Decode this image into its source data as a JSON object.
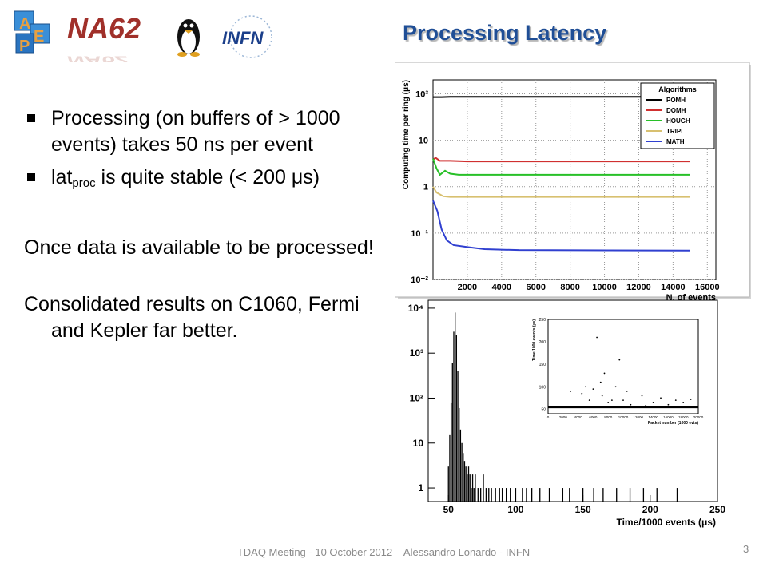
{
  "slide": {
    "title": "Processing Latency",
    "logo_text": "NA62",
    "logo_infn": "INFN",
    "bullets": [
      {
        "main": "Processing (on buffers of > 1000 events) takes 50 ns per event"
      },
      {
        "main_a": "lat",
        "sub": "proc",
        "main_b": " is quite stable (< 200 μs)"
      }
    ],
    "para1": "Once data is available to be processed!",
    "para2": "Consolidated results on C1060, Fermi and Kepler far better.",
    "footer": "TDAQ Meeting - 10 October 2012 – Alessandro Lonardo - INFN",
    "page_number": "3"
  },
  "colors": {
    "title": "#1f4e96",
    "POMH": "#000000",
    "DOMH": "#d03030",
    "HOUGH": "#28c028",
    "TRIPL": "#d8c070",
    "MATH": "#3040d0"
  },
  "chart_data": [
    {
      "type": "line",
      "xlabel": "N. of events",
      "ylabel": "Computing time per ring (μs)",
      "xlim": [
        0,
        16500
      ],
      "ylim": [
        0.01,
        200
      ],
      "yscale": "log",
      "xticks": [
        2000,
        4000,
        6000,
        8000,
        10000,
        12000,
        14000,
        16000
      ],
      "xtick_labels": [
        "2000",
        "4000",
        "6000",
        "8000",
        "10000",
        "12000",
        "14000",
        "16000"
      ],
      "yticks": [
        0.01,
        0.1,
        1,
        10,
        100
      ],
      "ytick_labels": [
        "10⁻²",
        "10⁻¹",
        "1",
        "10",
        "10²"
      ],
      "grid": true,
      "legend_title": "Algorithms",
      "legend_position": "top-right",
      "series": [
        {
          "name": "POMH",
          "x": [
            0,
            500,
            1000,
            2000,
            15000
          ],
          "y": [
            85,
            85,
            86,
            86,
            86
          ]
        },
        {
          "name": "DOMH",
          "x": [
            0,
            150,
            400,
            1000,
            2000,
            15000
          ],
          "y": [
            3.8,
            4.2,
            3.6,
            3.6,
            3.5,
            3.5
          ]
        },
        {
          "name": "HOUGH",
          "x": [
            0,
            200,
            400,
            700,
            1000,
            1500,
            2000,
            15000
          ],
          "y": [
            4.0,
            2.5,
            1.8,
            2.2,
            1.9,
            1.8,
            1.8,
            1.8
          ]
        },
        {
          "name": "TRIPL",
          "x": [
            0,
            200,
            600,
            1000,
            2000,
            15000
          ],
          "y": [
            1.0,
            0.75,
            0.62,
            0.6,
            0.6,
            0.6
          ]
        },
        {
          "name": "MATH",
          "x": [
            0,
            250,
            500,
            800,
            1200,
            2000,
            3000,
            5000,
            15000
          ],
          "y": [
            0.5,
            0.3,
            0.12,
            0.07,
            0.055,
            0.05,
            0.045,
            0.043,
            0.042
          ]
        }
      ]
    },
    {
      "type": "bar",
      "xlabel": "Time/1000 events (μs)",
      "ylabel": "",
      "xlim": [
        35,
        250
      ],
      "ylim": [
        0.5,
        15000
      ],
      "yscale": "log",
      "xticks": [
        50,
        100,
        150,
        200,
        250
      ],
      "yticks": [
        1,
        10,
        100,
        1000,
        10000
      ],
      "ytick_labels": [
        "1",
        "10",
        "10²",
        "10³",
        "10⁴"
      ],
      "x": [
        50,
        51,
        52,
        53,
        54,
        55,
        56,
        57,
        58,
        59,
        60,
        61,
        62,
        63,
        64,
        65,
        66,
        67,
        68,
        69,
        70,
        72,
        74,
        76,
        78,
        80,
        82,
        85,
        88,
        90,
        93,
        96,
        100,
        105,
        108,
        112,
        118,
        125,
        135,
        140,
        150,
        158,
        165,
        175,
        185,
        195,
        205,
        220
      ],
      "values": [
        3,
        15,
        80,
        600,
        3000,
        8000,
        2500,
        400,
        60,
        20,
        10,
        6,
        4,
        3,
        2,
        3,
        2,
        1,
        2,
        1,
        2,
        1,
        1,
        2,
        1,
        1,
        1,
        1,
        1,
        1,
        1,
        1,
        1,
        1,
        1,
        1,
        1,
        1,
        1,
        1,
        1,
        1,
        1,
        1,
        1,
        1,
        1,
        1
      ],
      "inset": {
        "type": "scatter",
        "xlabel": "Packet number (1000 evts)",
        "ylabel": "Time/1000 events (μs)",
        "xlim": [
          0,
          20000
        ],
        "ylim": [
          40,
          250
        ],
        "xticks": [
          0,
          2000,
          4000,
          6000,
          8000,
          10000,
          12000,
          14000,
          16000,
          18000,
          20000
        ],
        "yticks": [
          50,
          100,
          150,
          200,
          250
        ],
        "baseline": 55,
        "points": [
          [
            3000,
            90
          ],
          [
            4500,
            85
          ],
          [
            5500,
            70
          ],
          [
            6000,
            95
          ],
          [
            6500,
            210
          ],
          [
            7000,
            110
          ],
          [
            7500,
            130
          ],
          [
            8500,
            70
          ],
          [
            9000,
            100
          ],
          [
            9500,
            160
          ],
          [
            10500,
            90
          ],
          [
            11000,
            60
          ],
          [
            12500,
            80
          ],
          [
            14000,
            65
          ],
          [
            15000,
            75
          ],
          [
            16000,
            60
          ],
          [
            17000,
            70
          ],
          [
            18000,
            65
          ],
          [
            19000,
            72
          ],
          [
            5000,
            100
          ],
          [
            8000,
            65
          ],
          [
            10000,
            70
          ],
          [
            13000,
            58
          ],
          [
            7200,
            80
          ]
        ]
      }
    }
  ]
}
